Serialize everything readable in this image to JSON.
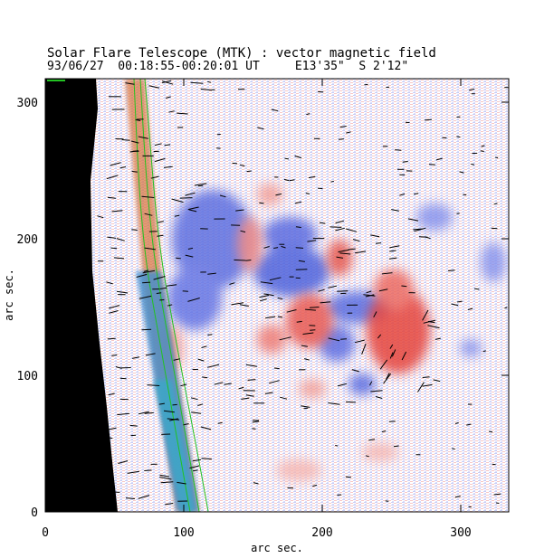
{
  "title": "Solar Flare Telescope (MTK) : vector magnetic field",
  "subtitle": "93/06/27  00:18:55-00:20:01 UT     E13'35\"  S 2'12\"",
  "x_axis": {
    "label": "arc sec.",
    "ticks": [
      "0",
      "100",
      "200",
      "300"
    ],
    "range": [
      0,
      335
    ]
  },
  "y_axis": {
    "label": "arc sec.",
    "ticks": [
      "0",
      "100",
      "200",
      "300"
    ],
    "range": [
      0,
      318
    ]
  },
  "colors": {
    "positive": "#e8584f",
    "negative": "#5f6fe0",
    "limb": "#000000",
    "vectors": "#000000",
    "contour": "#22c222"
  }
}
